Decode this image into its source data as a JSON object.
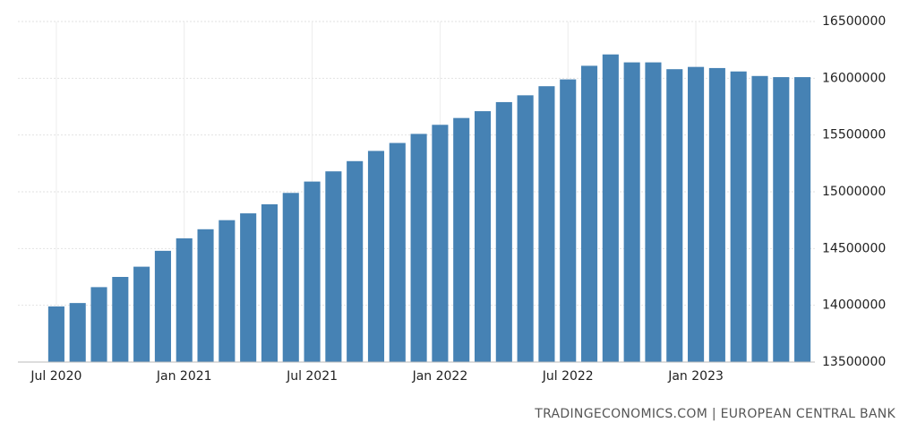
{
  "chart_data": {
    "type": "bar",
    "categories": [
      "Jul 2020",
      null,
      null,
      null,
      null,
      null,
      "Jan 2021",
      null,
      null,
      null,
      null,
      null,
      "Jul 2021",
      null,
      null,
      null,
      null,
      null,
      "Jan 2022",
      null,
      null,
      null,
      null,
      null,
      "Jul 2022",
      null,
      null,
      null,
      null,
      null,
      "Jan 2023",
      null,
      null,
      null,
      null,
      null
    ],
    "values": [
      13990000,
      14020000,
      14160000,
      14250000,
      14340000,
      14480000,
      14590000,
      14670000,
      14750000,
      14810000,
      14890000,
      14990000,
      15090000,
      15180000,
      15270000,
      15360000,
      15430000,
      15510000,
      15590000,
      15650000,
      15710000,
      15790000,
      15850000,
      15930000,
      15990000,
      16110000,
      16210000,
      16140000,
      16140000,
      16080000,
      16100000,
      16090000,
      16060000,
      16020000,
      16010000,
      16010000
    ],
    "color": "#4682b4",
    "ylim": [
      13500000,
      16500000
    ],
    "yticks": [
      13500000,
      14000000,
      14500000,
      15000000,
      15500000,
      16000000,
      16500000
    ],
    "grid": true,
    "source": "TRADINGECONOMICS.COM | EUROPEAN CENTRAL BANK"
  }
}
